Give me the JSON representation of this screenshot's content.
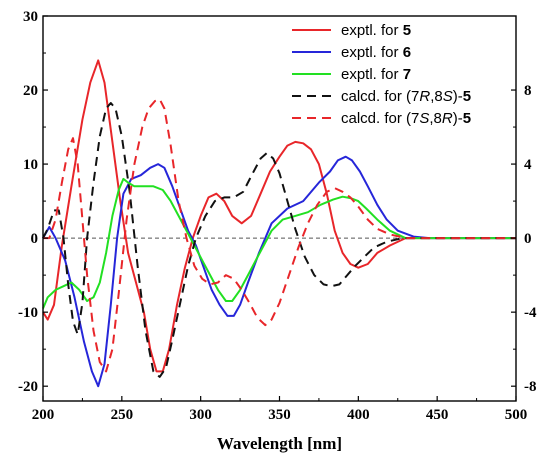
{
  "chart_data": {
    "type": "line",
    "xlabel": "Wavelength [nm]",
    "xlim": [
      200,
      500
    ],
    "xticks": [
      200,
      250,
      300,
      350,
      400,
      450,
      500
    ],
    "ylim_left": [
      -22,
      30
    ],
    "yticks_left": [
      -20,
      -10,
      0,
      10,
      20,
      30
    ],
    "ylim_right": [
      -8.8,
      12
    ],
    "yticks_right": [
      -8,
      -4,
      0,
      4,
      8
    ],
    "zero_line": true,
    "grid": false,
    "legend_position": "top-right",
    "legend": [
      {
        "prefix": "exptl. for ",
        "label": "5",
        "color": "#e8262a",
        "dash": "solid"
      },
      {
        "prefix": "exptl. for ",
        "label": "6",
        "color": "#2626d9",
        "dash": "solid"
      },
      {
        "prefix": "exptl. for ",
        "label": "7",
        "color": "#22e022",
        "dash": "solid"
      },
      {
        "prefix": "calcd. for (",
        "r1": "7",
        "i1": "R",
        "r2": ",8",
        "i2": "S",
        "suffix": ")-",
        "label": "5",
        "color": "#111111",
        "dash": "dashed"
      },
      {
        "prefix": "calcd. for (",
        "r1": "7",
        "i1": "S",
        "r2": ",8",
        "i2": "R",
        "suffix": ")-",
        "label": "5",
        "color": "#e8262a",
        "dash": "dashed"
      }
    ],
    "series": [
      {
        "axis": "left",
        "color": "#e8262a",
        "dash": "solid",
        "points": [
          [
            200,
            -10
          ],
          [
            203,
            -11
          ],
          [
            207,
            -9
          ],
          [
            212,
            -1
          ],
          [
            218,
            7
          ],
          [
            225,
            16
          ],
          [
            230,
            21
          ],
          [
            235,
            24
          ],
          [
            239,
            21
          ],
          [
            244,
            13
          ],
          [
            249,
            5
          ],
          [
            254,
            -2
          ],
          [
            259,
            -6
          ],
          [
            264,
            -10
          ],
          [
            268,
            -15
          ],
          [
            272,
            -18
          ],
          [
            276,
            -18
          ],
          [
            280,
            -15
          ],
          [
            285,
            -9
          ],
          [
            290,
            -4
          ],
          [
            295,
            0
          ],
          [
            300,
            3
          ],
          [
            305,
            5.5
          ],
          [
            310,
            6
          ],
          [
            315,
            5
          ],
          [
            320,
            3
          ],
          [
            326,
            2
          ],
          [
            332,
            3
          ],
          [
            338,
            6
          ],
          [
            344,
            9
          ],
          [
            350,
            11
          ],
          [
            355,
            12.5
          ],
          [
            360,
            13
          ],
          [
            365,
            12.8
          ],
          [
            370,
            12
          ],
          [
            375,
            10
          ],
          [
            380,
            6
          ],
          [
            385,
            1
          ],
          [
            390,
            -2
          ],
          [
            395,
            -3.5
          ],
          [
            400,
            -4
          ],
          [
            406,
            -3.5
          ],
          [
            412,
            -2
          ],
          [
            420,
            -1
          ],
          [
            430,
            0
          ],
          [
            500,
            0
          ]
        ]
      },
      {
        "axis": "left",
        "color": "#2626d9",
        "dash": "solid",
        "points": [
          [
            200,
            0
          ],
          [
            204,
            1.5
          ],
          [
            208,
            0
          ],
          [
            214,
            -3
          ],
          [
            220,
            -8
          ],
          [
            226,
            -14
          ],
          [
            231,
            -18
          ],
          [
            235,
            -20
          ],
          [
            239,
            -17
          ],
          [
            243,
            -9
          ],
          [
            247,
            0
          ],
          [
            251,
            6
          ],
          [
            256,
            8
          ],
          [
            262,
            8.5
          ],
          [
            268,
            9.5
          ],
          [
            273,
            10
          ],
          [
            277,
            9.5
          ],
          [
            282,
            7
          ],
          [
            287,
            4
          ],
          [
            292,
            1
          ],
          [
            297,
            -1
          ],
          [
            302,
            -4
          ],
          [
            307,
            -7
          ],
          [
            312,
            -9
          ],
          [
            317,
            -10.5
          ],
          [
            321,
            -10.5
          ],
          [
            325,
            -9
          ],
          [
            330,
            -6
          ],
          [
            337,
            -2
          ],
          [
            345,
            2
          ],
          [
            355,
            4
          ],
          [
            365,
            5
          ],
          [
            375,
            7.5
          ],
          [
            382,
            9
          ],
          [
            387,
            10.5
          ],
          [
            392,
            11
          ],
          [
            396,
            10.5
          ],
          [
            401,
            9
          ],
          [
            406,
            7
          ],
          [
            412,
            4.5
          ],
          [
            418,
            2.5
          ],
          [
            425,
            1
          ],
          [
            435,
            0.2
          ],
          [
            445,
            0
          ],
          [
            500,
            0
          ]
        ]
      },
      {
        "axis": "left",
        "color": "#22e022",
        "dash": "solid",
        "points": [
          [
            200,
            -9.5
          ],
          [
            203,
            -8
          ],
          [
            208,
            -7
          ],
          [
            213,
            -6.5
          ],
          [
            218,
            -6
          ],
          [
            223,
            -7
          ],
          [
            228,
            -8.5
          ],
          [
            232,
            -8
          ],
          [
            236,
            -6
          ],
          [
            240,
            -2
          ],
          [
            244,
            3
          ],
          [
            248,
            6.5
          ],
          [
            251,
            8
          ],
          [
            254,
            7.5
          ],
          [
            258,
            7
          ],
          [
            264,
            7
          ],
          [
            270,
            7
          ],
          [
            276,
            6.5
          ],
          [
            281,
            5
          ],
          [
            286,
            3
          ],
          [
            291,
            1
          ],
          [
            296,
            -1
          ],
          [
            301,
            -3
          ],
          [
            306,
            -5
          ],
          [
            311,
            -7
          ],
          [
            316,
            -8.5
          ],
          [
            320,
            -8.5
          ],
          [
            325,
            -7
          ],
          [
            330,
            -5
          ],
          [
            335,
            -3
          ],
          [
            340,
            -1
          ],
          [
            345,
            1
          ],
          [
            352,
            2.5
          ],
          [
            360,
            3
          ],
          [
            368,
            3.5
          ],
          [
            376,
            4.5
          ],
          [
            384,
            5.2
          ],
          [
            390,
            5.6
          ],
          [
            395,
            5.4
          ],
          [
            400,
            5
          ],
          [
            405,
            4
          ],
          [
            412,
            2.5
          ],
          [
            420,
            1
          ],
          [
            430,
            0
          ],
          [
            500,
            0
          ]
        ]
      },
      {
        "axis": "right",
        "color": "#111111",
        "dash": "dashed",
        "points": [
          [
            200,
            0
          ],
          [
            203,
            0.5
          ],
          [
            207,
            1.5
          ],
          [
            210,
            1.5
          ],
          [
            213,
            0
          ],
          [
            216,
            -2.5
          ],
          [
            219,
            -4.5
          ],
          [
            222,
            -5.2
          ],
          [
            225,
            -3.5
          ],
          [
            228,
            0
          ],
          [
            232,
            3
          ],
          [
            236,
            5.5
          ],
          [
            240,
            7
          ],
          [
            243,
            7.3
          ],
          [
            246,
            7
          ],
          [
            250,
            5.5
          ],
          [
            255,
            2.5
          ],
          [
            260,
            -1.5
          ],
          [
            265,
            -5
          ],
          [
            270,
            -7.2
          ],
          [
            274,
            -7.5
          ],
          [
            278,
            -7
          ],
          [
            282,
            -5.5
          ],
          [
            287,
            -3.5
          ],
          [
            292,
            -1.5
          ],
          [
            297,
            0
          ],
          [
            303,
            1.2
          ],
          [
            309,
            2
          ],
          [
            315,
            2.2
          ],
          [
            321,
            2.2
          ],
          [
            327,
            2.5
          ],
          [
            333,
            3.5
          ],
          [
            338,
            4.3
          ],
          [
            342,
            4.6
          ],
          [
            346,
            4.3
          ],
          [
            350,
            3.5
          ],
          [
            355,
            2
          ],
          [
            360,
            0.5
          ],
          [
            366,
            -1
          ],
          [
            372,
            -2
          ],
          [
            378,
            -2.5
          ],
          [
            383,
            -2.6
          ],
          [
            388,
            -2.5
          ],
          [
            393,
            -2
          ],
          [
            398,
            -1.5
          ],
          [
            404,
            -1
          ],
          [
            410,
            -0.5
          ],
          [
            418,
            -0.2
          ],
          [
            428,
            0
          ],
          [
            500,
            0
          ]
        ]
      },
      {
        "axis": "right",
        "color": "#e8262a",
        "dash": "dashed",
        "points": [
          [
            200,
            0
          ],
          [
            204,
            0
          ],
          [
            208,
            1
          ],
          [
            212,
            3
          ],
          [
            216,
            4.8
          ],
          [
            219,
            5.4
          ],
          [
            222,
            4
          ],
          [
            225,
            1
          ],
          [
            228,
            -2
          ],
          [
            232,
            -5
          ],
          [
            236,
            -6.7
          ],
          [
            240,
            -7.2
          ],
          [
            244,
            -6
          ],
          [
            248,
            -3
          ],
          [
            253,
            1
          ],
          [
            258,
            4
          ],
          [
            263,
            6
          ],
          [
            267,
            7
          ],
          [
            271,
            7.4
          ],
          [
            274,
            7.5
          ],
          [
            277,
            7
          ],
          [
            281,
            5
          ],
          [
            286,
            2
          ],
          [
            291,
            0
          ],
          [
            296,
            -1.5
          ],
          [
            301,
            -2.2
          ],
          [
            306,
            -2.5
          ],
          [
            311,
            -2.4
          ],
          [
            316,
            -2
          ],
          [
            321,
            -2.2
          ],
          [
            326,
            -2.8
          ],
          [
            331,
            -3.5
          ],
          [
            336,
            -4.3
          ],
          [
            341,
            -4.7
          ],
          [
            345,
            -4.4
          ],
          [
            350,
            -3.5
          ],
          [
            356,
            -2
          ],
          [
            362,
            -0.5
          ],
          [
            368,
            0.8
          ],
          [
            374,
            1.8
          ],
          [
            380,
            2.5
          ],
          [
            385,
            2.7
          ],
          [
            390,
            2.5
          ],
          [
            395,
            2.2
          ],
          [
            400,
            1.7
          ],
          [
            406,
            1
          ],
          [
            412,
            0.5
          ],
          [
            420,
            0.2
          ],
          [
            430,
            0
          ],
          [
            500,
            0
          ]
        ]
      }
    ]
  }
}
